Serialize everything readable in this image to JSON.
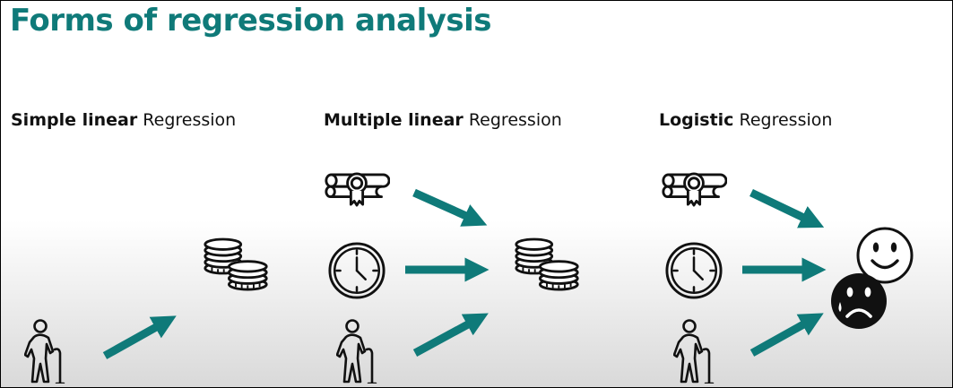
{
  "title": "Forms of regression analysis",
  "colors": {
    "accent": "#0f7a79",
    "icon": "#111111"
  },
  "columns": [
    {
      "heading_bold": "Simple linear",
      "heading_rest": " Regression",
      "inputs": [
        "elderly-person-icon"
      ],
      "output": [
        "coin-stack-icon"
      ]
    },
    {
      "heading_bold": "Multiple linear",
      "heading_rest": " Regression",
      "inputs": [
        "diploma-icon",
        "clock-icon",
        "elderly-person-icon"
      ],
      "output": [
        "coin-stack-icon"
      ]
    },
    {
      "heading_bold": "Logistic",
      "heading_rest": " Regression",
      "inputs": [
        "diploma-icon",
        "clock-icon",
        "elderly-person-icon"
      ],
      "output": [
        "happy-face-icon",
        "sad-face-icon"
      ]
    }
  ]
}
